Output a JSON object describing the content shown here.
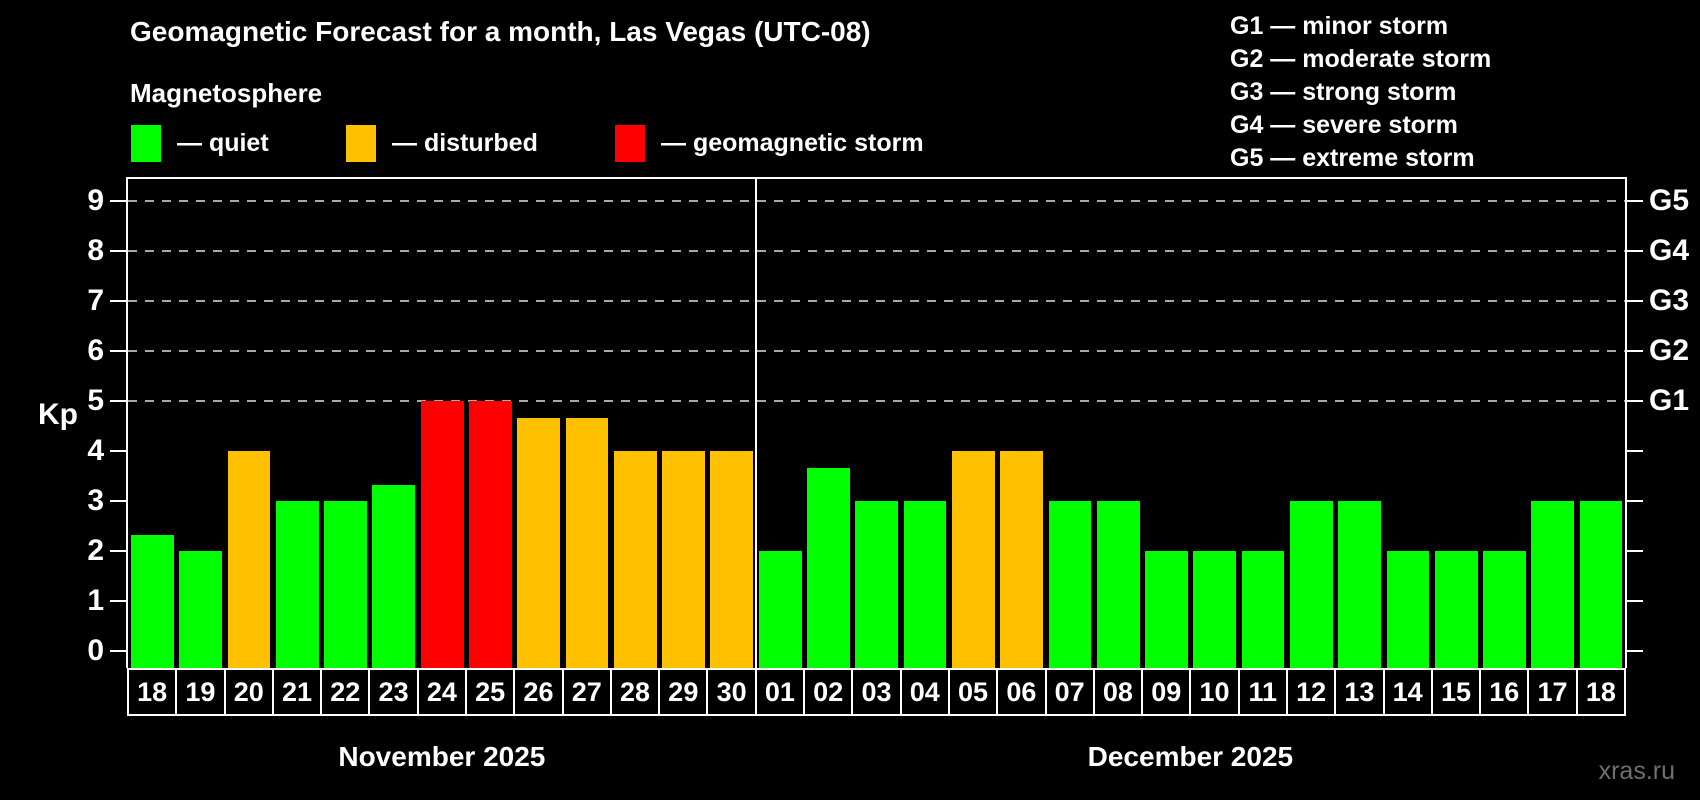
{
  "title": "Geomagnetic Forecast for a month, Las Vegas (UTC-08)",
  "subtitle": "Magnetosphere",
  "legend": {
    "quiet_label": "— quiet",
    "disturbed_label": "— disturbed",
    "storm_label": "— geomagnetic storm"
  },
  "g_legend": [
    "G1 — minor storm",
    "G2 — moderate storm",
    "G3 — strong storm",
    "G4 — severe storm",
    "G5 — extreme storm"
  ],
  "colors": {
    "quiet": "#00ff00",
    "disturbed": "#ffc000",
    "storm": "#ff0000",
    "background": "#000000",
    "axis": "#ffffff",
    "gridline": "#a8a8a8",
    "watermark_text": "#6f6f6f"
  },
  "axis": {
    "y_label": "Kp",
    "y_ticks": [
      0,
      1,
      2,
      3,
      4,
      5,
      6,
      7,
      8,
      9
    ]
  },
  "watermark": "xras.ru",
  "chart_data": {
    "type": "bar",
    "title": "Geomagnetic Forecast for a month, Las Vegas (UTC-08)",
    "ylabel": "Kp",
    "ylim": [
      0,
      9
    ],
    "grid": "dashed horizontal at Kp 5-9",
    "gridlines_at": [
      5,
      6,
      7,
      8,
      9
    ],
    "right_axis_labels": [
      {
        "label": "G1",
        "kp": 5
      },
      {
        "label": "G2",
        "kp": 6
      },
      {
        "label": "G3",
        "kp": 7
      },
      {
        "label": "G4",
        "kp": 8
      },
      {
        "label": "G5",
        "kp": 9
      }
    ],
    "status_colors": {
      "quiet": "#00ff00",
      "disturbed": "#ffc000",
      "storm": "#ff0000"
    },
    "months": [
      {
        "name": "November 2025",
        "days": [
          {
            "day": "18",
            "kp": 2.33,
            "status": "quiet"
          },
          {
            "day": "19",
            "kp": 2.0,
            "status": "quiet"
          },
          {
            "day": "20",
            "kp": 4.0,
            "status": "disturbed"
          },
          {
            "day": "21",
            "kp": 3.0,
            "status": "quiet"
          },
          {
            "day": "22",
            "kp": 3.0,
            "status": "quiet"
          },
          {
            "day": "23",
            "kp": 3.33,
            "status": "quiet"
          },
          {
            "day": "24",
            "kp": 5.0,
            "status": "storm"
          },
          {
            "day": "25",
            "kp": 5.0,
            "status": "storm"
          },
          {
            "day": "26",
            "kp": 4.67,
            "status": "disturbed"
          },
          {
            "day": "27",
            "kp": 4.67,
            "status": "disturbed"
          },
          {
            "day": "28",
            "kp": 4.0,
            "status": "disturbed"
          },
          {
            "day": "29",
            "kp": 4.0,
            "status": "disturbed"
          },
          {
            "day": "30",
            "kp": 4.0,
            "status": "disturbed"
          }
        ]
      },
      {
        "name": "December 2025",
        "days": [
          {
            "day": "01",
            "kp": 2.0,
            "status": "quiet"
          },
          {
            "day": "02",
            "kp": 3.67,
            "status": "quiet"
          },
          {
            "day": "03",
            "kp": 3.0,
            "status": "quiet"
          },
          {
            "day": "04",
            "kp": 3.0,
            "status": "quiet"
          },
          {
            "day": "05",
            "kp": 4.0,
            "status": "disturbed"
          },
          {
            "day": "06",
            "kp": 4.0,
            "status": "disturbed"
          },
          {
            "day": "07",
            "kp": 3.0,
            "status": "quiet"
          },
          {
            "day": "08",
            "kp": 3.0,
            "status": "quiet"
          },
          {
            "day": "09",
            "kp": 2.0,
            "status": "quiet"
          },
          {
            "day": "10",
            "kp": 2.0,
            "status": "quiet"
          },
          {
            "day": "11",
            "kp": 2.0,
            "status": "quiet"
          },
          {
            "day": "12",
            "kp": 3.0,
            "status": "quiet"
          },
          {
            "day": "13",
            "kp": 3.0,
            "status": "quiet"
          },
          {
            "day": "14",
            "kp": 2.0,
            "status": "quiet"
          },
          {
            "day": "15",
            "kp": 2.0,
            "status": "quiet"
          },
          {
            "day": "16",
            "kp": 2.0,
            "status": "quiet"
          },
          {
            "day": "17",
            "kp": 3.0,
            "status": "quiet"
          },
          {
            "day": "18",
            "kp": 3.0,
            "status": "quiet"
          }
        ]
      }
    ],
    "legend_position": "top-left",
    "legend_entries": [
      {
        "label": "— quiet",
        "color": "#00ff00"
      },
      {
        "label": "— disturbed",
        "color": "#ffc000"
      },
      {
        "label": "— geomagnetic storm",
        "color": "#ff0000"
      }
    ]
  }
}
